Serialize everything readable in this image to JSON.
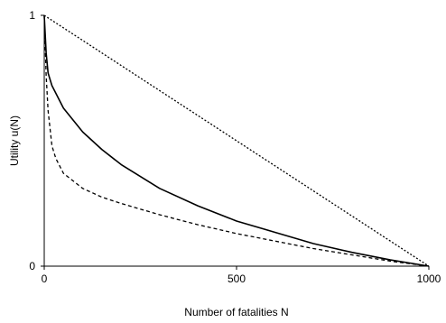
{
  "chart_data": {
    "type": "line",
    "title": "",
    "xlabel": "Number of fatalities N",
    "ylabel": "Utility u(N)",
    "xlim": [
      0,
      1000
    ],
    "ylim": [
      0,
      1
    ],
    "x_ticks": [
      "0",
      "500",
      "1000"
    ],
    "y_ticks": [
      "0",
      "1"
    ],
    "grid": false,
    "legend": "none",
    "series": [
      {
        "style": "dotted",
        "color": "#000000",
        "x": [
          0,
          1000
        ],
        "y": [
          1.0,
          0.0
        ]
      },
      {
        "style": "solid",
        "color": "#000000",
        "x": [
          0,
          5,
          10,
          20,
          50,
          100,
          150,
          200,
          300,
          400,
          500,
          600,
          700,
          800,
          900,
          1000
        ],
        "y": [
          1.0,
          0.85,
          0.77,
          0.72,
          0.63,
          0.535,
          0.465,
          0.405,
          0.31,
          0.24,
          0.18,
          0.135,
          0.09,
          0.055,
          0.025,
          0.0
        ]
      },
      {
        "style": "dashed",
        "color": "#000000",
        "x": [
          0,
          5,
          10,
          20,
          30,
          50,
          100,
          150,
          200,
          300,
          400,
          500,
          600,
          700,
          800,
          900,
          1000
        ],
        "y": [
          1.0,
          0.76,
          0.62,
          0.48,
          0.43,
          0.37,
          0.31,
          0.275,
          0.25,
          0.205,
          0.165,
          0.13,
          0.1,
          0.07,
          0.045,
          0.02,
          0.0
        ]
      }
    ]
  }
}
